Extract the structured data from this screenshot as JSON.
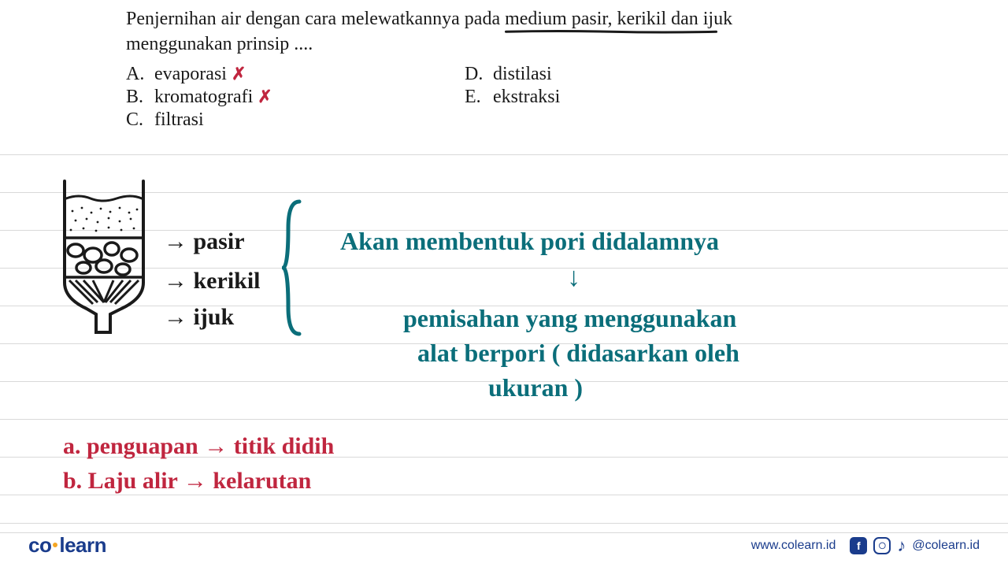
{
  "question": {
    "line1_a": "Penjernihan air dengan cara melewatkannya pada ",
    "line1_u": "medium pasir, kerikil dan ijuk",
    "line2": "menggunakan prinsip ....",
    "underline_color": "#1a1a1a"
  },
  "options": {
    "a": {
      "letter": "A.",
      "text": "evaporasi",
      "x": "✗",
      "x_color": "#c0263f"
    },
    "b": {
      "letter": "B.",
      "text": "kromatografi",
      "x": "✗",
      "x_color": "#c0263f"
    },
    "c": {
      "letter": "C.",
      "text": "filtrasi"
    },
    "d": {
      "letter": "D.",
      "text": "distilasi"
    },
    "e": {
      "letter": "E.",
      "text": "ekstraksi"
    }
  },
  "diagram": {
    "layers": [
      {
        "arrow": "→",
        "label": "pasir"
      },
      {
        "arrow": "→",
        "label": "kerikil"
      },
      {
        "arrow": "→",
        "label": "ijuk"
      }
    ],
    "stroke": "#1a1a1a"
  },
  "notes_teal": {
    "line1": "Akan  membentuk  pori  didalamnya",
    "arrow": "↓",
    "line2": "pemisahan  yang  menggunakan",
    "line3": "alat berpori   ( didasarkan oleh",
    "line4": "ukuran )",
    "color": "#0b6e7a"
  },
  "notes_red": {
    "line1": "a.  penguapan  →  titik didih",
    "line2": "b.  Laju alir   →  kelarutan",
    "color": "#c0263f"
  },
  "ruled": {
    "line_color": "#d9d9d9",
    "line_spacing": 48,
    "first_y": 0,
    "count": 11
  },
  "footer": {
    "logo_a": "co",
    "logo_b": "learn",
    "logo_color": "#1a3c8c",
    "dot_color": "#f5a623",
    "url": "www.colearn.id",
    "handle": "@colearn.id",
    "social_bg": "#1a3c8c"
  }
}
